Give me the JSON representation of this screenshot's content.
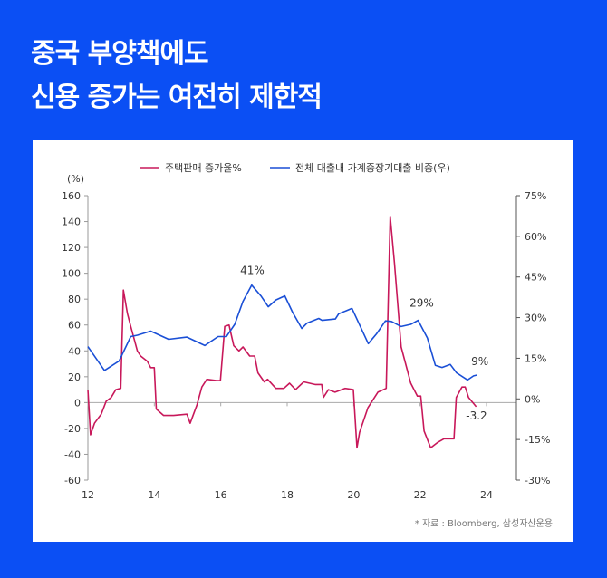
{
  "header": {
    "title_line1": "중국 부양책에도",
    "title_line2": "신용 증가는 여전히 제한적"
  },
  "source": "* 자료 : Bloomberg, 삼성자산운용",
  "chart_data": {
    "type": "line",
    "title": "",
    "ylabel": "(%)",
    "ylim": [
      -60,
      160
    ],
    "y2lim": [
      -30,
      75
    ],
    "xlim": [
      12,
      24
    ],
    "x_ticks": [
      "12",
      "14",
      "16",
      "18",
      "20",
      "22",
      "24"
    ],
    "y_ticks": [
      "160",
      "140",
      "120",
      "100",
      "80",
      "60",
      "40",
      "20",
      "0",
      "-20",
      "-40",
      "-60"
    ],
    "y2_ticks": [
      "75%",
      "60%",
      "45%",
      "30%",
      "15%",
      "0%",
      "-15%",
      "-30%"
    ],
    "legend_position": "top-center",
    "series": [
      {
        "name": "주택판매 증가율%",
        "axis": "left",
        "color": "#c8185a",
        "x": [
          12.0,
          12.08,
          12.2,
          12.4,
          12.55,
          12.7,
          12.84,
          12.99,
          13.07,
          13.19,
          13.29,
          13.49,
          13.59,
          13.79,
          13.89,
          14.0,
          14.06,
          14.28,
          14.58,
          14.98,
          15.08,
          15.28,
          15.43,
          15.58,
          15.87,
          15.99,
          16.12,
          16.25,
          16.39,
          16.55,
          16.67,
          16.87,
          17.02,
          17.12,
          17.31,
          17.41,
          17.66,
          17.9,
          18.07,
          18.25,
          18.5,
          18.84,
          19.04,
          19.09,
          19.24,
          19.44,
          19.74,
          19.99,
          20.1,
          20.18,
          20.43,
          20.73,
          20.98,
          21.1,
          21.23,
          21.43,
          21.72,
          21.92,
          22.02,
          22.12,
          22.32,
          22.52,
          22.72,
          23.02,
          23.09,
          23.26,
          23.36,
          23.46,
          23.69
        ],
        "y": [
          10,
          -25,
          -16,
          -9,
          1,
          4,
          10,
          11,
          87,
          69,
          59,
          40,
          36,
          32,
          27,
          27,
          -5,
          -10,
          -10,
          -9,
          -16,
          -2,
          12,
          18,
          17,
          17,
          59,
          60,
          44,
          40,
          43,
          36,
          36,
          23,
          16,
          18,
          11,
          11,
          15,
          10,
          16,
          14,
          14,
          4,
          10,
          8,
          11,
          10,
          -35,
          -23,
          -4,
          8,
          11,
          144,
          108,
          43,
          15,
          5,
          5,
          -22,
          -35,
          -31,
          -28,
          -28,
          4,
          12,
          12,
          4,
          -3.2
        ]
      },
      {
        "name": "전체 대출내 가계중장기대출 비중(우)",
        "axis": "right",
        "color": "#1a4fd6",
        "x": [
          12.0,
          12.5,
          12.94,
          13.29,
          13.49,
          13.89,
          14.43,
          14.98,
          15.52,
          15.92,
          16.17,
          16.42,
          16.67,
          16.93,
          17.21,
          17.43,
          17.66,
          17.93,
          18.16,
          18.44,
          18.6,
          18.95,
          19.05,
          19.45,
          19.55,
          19.95,
          20.44,
          20.69,
          20.96,
          21.14,
          21.43,
          21.72,
          21.94,
          22.22,
          22.46,
          22.66,
          22.91,
          23.1,
          23.43,
          23.61,
          23.71
        ],
        "y": [
          19.3,
          10.5,
          14,
          23,
          23.5,
          25,
          22,
          22.8,
          19.7,
          23,
          23,
          27.5,
          36,
          42,
          38,
          34,
          36.5,
          38,
          32,
          26,
          28,
          29.7,
          29,
          29.5,
          31.4,
          33.4,
          20.4,
          24,
          28.8,
          28.6,
          26.7,
          27.5,
          29,
          22.5,
          12.4,
          11.6,
          12.7,
          9.6,
          7,
          8.5,
          8.8
        ]
      }
    ],
    "annotations": [
      {
        "text": "41%",
        "x": 16.95,
        "y": 46,
        "axis": "right"
      },
      {
        "text": "29%",
        "x": 22.05,
        "y": 34,
        "axis": "right"
      },
      {
        "text": "9%",
        "x": 23.8,
        "y": 12.5,
        "axis": "right"
      },
      {
        "text": "-3.2",
        "x": 23.7,
        "y": -13,
        "axis": "left"
      }
    ]
  }
}
